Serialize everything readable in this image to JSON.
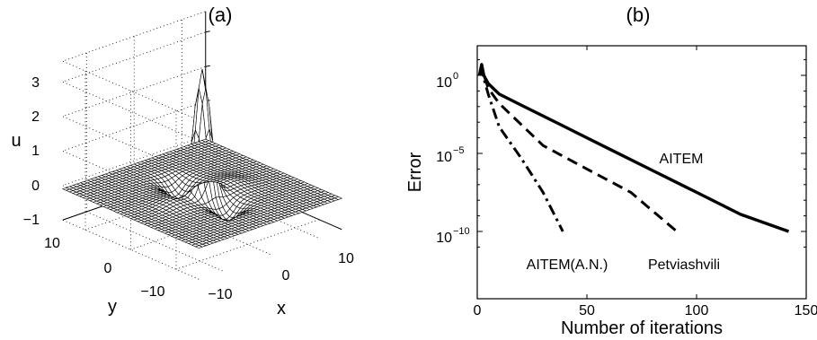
{
  "chart_data": [
    {
      "type": "surface",
      "title": "(a)",
      "xlabel": "x",
      "ylabel": "y",
      "zlabel": "u",
      "x_ticks": [
        "−10",
        "0",
        "10"
      ],
      "y_ticks": [
        "10",
        "0",
        "−10"
      ],
      "z_ticks": [
        "3",
        "2",
        "1",
        "0",
        "−1"
      ],
      "xlim": [
        -15,
        15
      ],
      "ylim": [
        -15,
        15
      ],
      "zlim": [
        -1,
        3
      ],
      "grid": true,
      "surface": {
        "description": "localized peak at origin reaching ~3.5 with shallow negative dips along the x direction",
        "peak_value": 3.5,
        "background_value": -0.1
      }
    },
    {
      "type": "line",
      "title": "(b)",
      "xlabel": "Number of iterations",
      "ylabel": "Error",
      "y_scale": "log",
      "xlim": [
        0,
        150
      ],
      "ylim": [
        1e-12,
        100
      ],
      "x_ticks": [
        "0",
        "50",
        "100",
        "150"
      ],
      "y_ticks": [
        {
          "base": "10",
          "exp": "0"
        },
        {
          "base": "10",
          "exp": "−5"
        },
        {
          "base": "10",
          "exp": "−10"
        }
      ],
      "series": [
        {
          "name": "AITEM",
          "style": "solid",
          "points": [
            [
              1,
              1.0
            ],
            [
              2,
              5.0
            ],
            [
              3,
              1.0
            ],
            [
              5,
              0.3
            ],
            [
              10,
              0.0631
            ],
            [
              20,
              0.0126
            ],
            [
              40,
              0.000501
            ],
            [
              60,
              2e-05
            ],
            [
              80,
              8e-07
            ],
            [
              100,
              3.2e-08
            ],
            [
              120,
              1.26e-09
            ],
            [
              142,
              1e-10
            ]
          ]
        },
        {
          "name": "Petviashvili",
          "style": "dashed",
          "points": [
            [
              1,
              1.0
            ],
            [
              2,
              3.0
            ],
            [
              5,
              0.15
            ],
            [
              10,
              0.0158
            ],
            [
              30,
              3.2e-05
            ],
            [
              50,
              1e-06
            ],
            [
              70,
              3.2e-08
            ],
            [
              91,
              1e-10
            ]
          ]
        },
        {
          "name": "AITEM(A.N.)",
          "style": "dashdot",
          "points": [
            [
              1,
              1.0
            ],
            [
              2,
              2.0
            ],
            [
              5,
              0.0631
            ],
            [
              10,
              0.0005
            ],
            [
              20,
              5e-06
            ],
            [
              30,
              3.2e-08
            ],
            [
              39,
              1e-10
            ]
          ]
        }
      ],
      "annotations": [
        "AITEM",
        "AITEM(A.N.)",
        "Petviashvili"
      ]
    }
  ]
}
